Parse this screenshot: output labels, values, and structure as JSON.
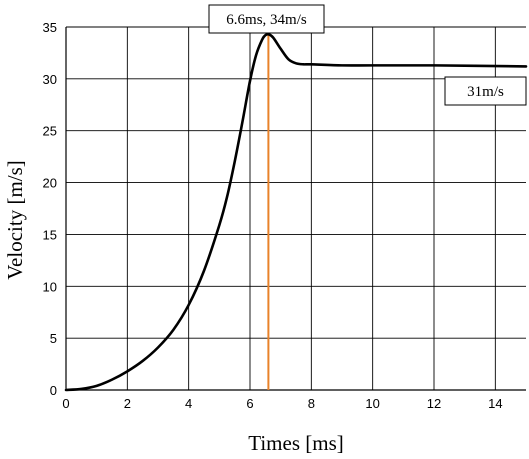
{
  "chart_data": {
    "type": "line",
    "xlabel": "Times [ms]",
    "ylabel": "Velocity [m/s]",
    "xlim": [
      0,
      15
    ],
    "ylim": [
      0,
      35
    ],
    "x_ticks": [
      0,
      2,
      4,
      6,
      8,
      10,
      12,
      14
    ],
    "y_ticks": [
      0,
      5,
      10,
      15,
      20,
      25,
      30,
      35
    ],
    "grid": true,
    "series": [
      {
        "color": "#000000",
        "x": [
          0,
          0.5,
          1,
          1.5,
          2,
          2.5,
          3,
          3.5,
          4,
          4.5,
          5,
          5.25,
          5.5,
          5.75,
          6,
          6.2,
          6.4,
          6.5,
          6.6,
          6.75,
          7,
          7.25,
          7.5,
          7.75,
          8,
          9,
          10,
          12,
          15
        ],
        "y": [
          0,
          0.1,
          0.4,
          1,
          1.8,
          2.8,
          4.1,
          5.8,
          8.2,
          11.5,
          15.9,
          18.6,
          22,
          25.8,
          29.8,
          32.3,
          33.8,
          34.2,
          34.3,
          34,
          32.9,
          31.9,
          31.5,
          31.4,
          31.4,
          31.3,
          31.3,
          31.3,
          31.2
        ]
      }
    ],
    "marker_line": {
      "x": 6.6,
      "color": "#e8822a"
    },
    "annotations": [
      {
        "text": "6.6ms, 34m/s"
      },
      {
        "text": "31m/s"
      }
    ]
  }
}
